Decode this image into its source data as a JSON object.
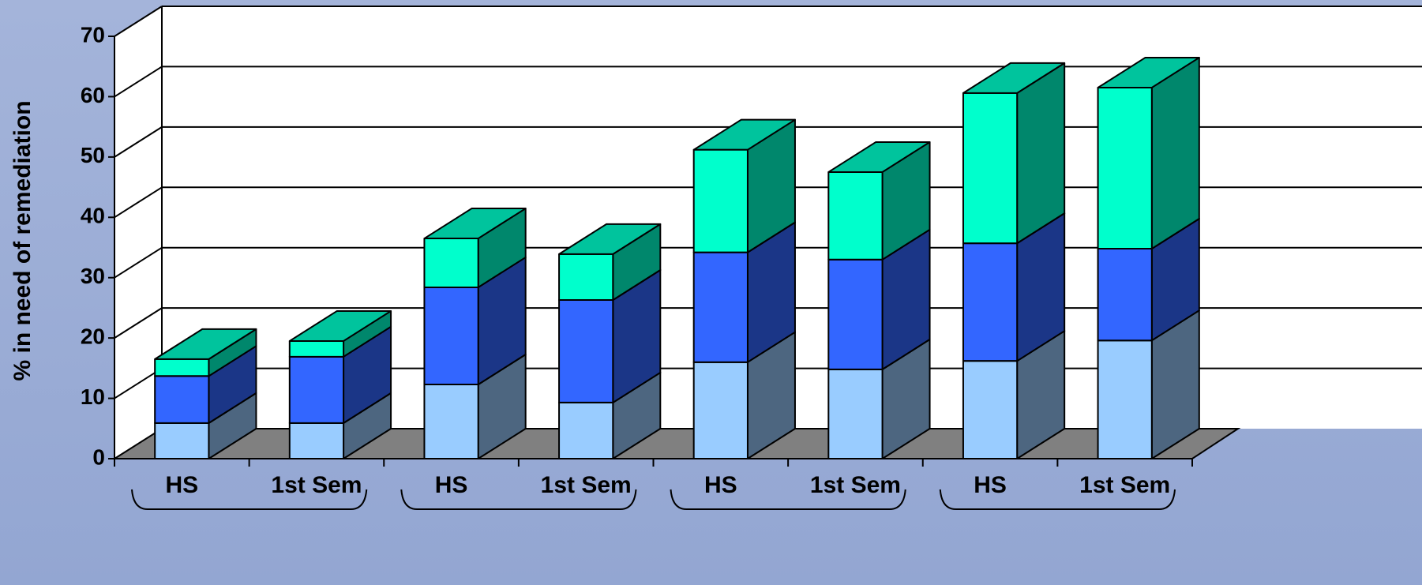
{
  "chart_data": {
    "type": "bar3d_stacked",
    "y_label": "% in need of remediation",
    "categories": [
      "HS",
      "1st Sem",
      "HS",
      "1st Sem",
      "HS",
      "1st Sem",
      "HS",
      "1st Sem"
    ],
    "series": [
      {
        "color": "#99ccff",
        "values": [
          5.9,
          5.9,
          12.3,
          9.3,
          16.0,
          14.8,
          16.2,
          19.6
        ]
      },
      {
        "color": "#3366ff",
        "values": [
          7.8,
          11.0,
          16.1,
          17.0,
          18.2,
          18.2,
          19.5,
          15.2
        ]
      },
      {
        "color": "#00ffcc",
        "values": [
          2.8,
          2.6,
          8.1,
          7.6,
          17.0,
          14.5,
          24.9,
          26.7
        ]
      }
    ],
    "ylim": [
      0,
      70
    ],
    "yticks": [
      0,
      10,
      20,
      30,
      40,
      50,
      60,
      70
    ],
    "grid": true
  }
}
